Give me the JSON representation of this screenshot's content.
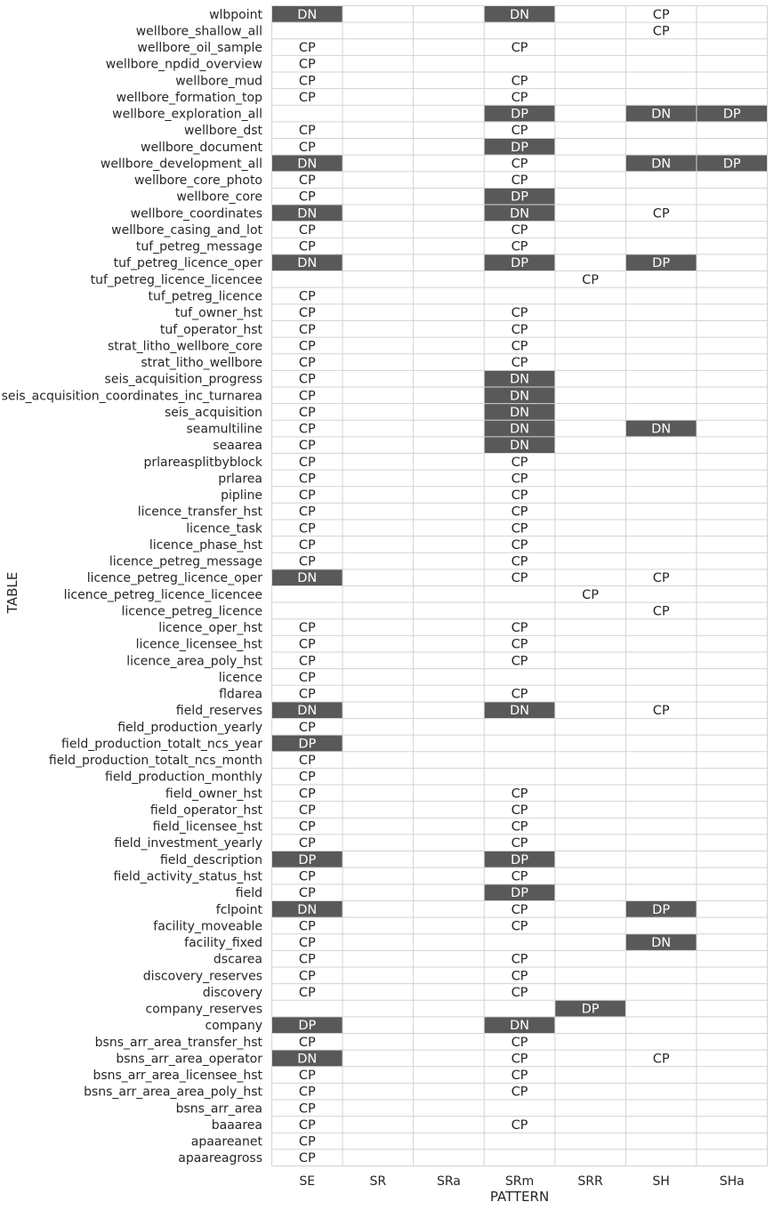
{
  "chart_data": {
    "type": "heatmap",
    "title": "",
    "xlabel": "PATTERN",
    "ylabel": "TABLE",
    "grid": true,
    "legend": "none",
    "columns": [
      "SE",
      "SR",
      "SRa",
      "SRm",
      "SRR",
      "SH",
      "SHa"
    ],
    "colors": {
      "filled": "#595959",
      "empty": "#ffffff",
      "grid": "#d3d3d3",
      "filled_text": "#ffffff",
      "empty_text": "#262626"
    },
    "filled_values": [
      "DN",
      "DP"
    ],
    "rows": [
      {
        "table": "wlbpoint",
        "values": [
          "DN",
          "",
          "",
          "DN",
          "",
          "CP",
          ""
        ]
      },
      {
        "table": "wellbore_shallow_all",
        "values": [
          "",
          "",
          "",
          "",
          "",
          "CP",
          ""
        ]
      },
      {
        "table": "wellbore_oil_sample",
        "values": [
          "CP",
          "",
          "",
          "CP",
          "",
          "",
          ""
        ]
      },
      {
        "table": "wellbore_npdid_overview",
        "values": [
          "CP",
          "",
          "",
          "",
          "",
          "",
          ""
        ]
      },
      {
        "table": "wellbore_mud",
        "values": [
          "CP",
          "",
          "",
          "CP",
          "",
          "",
          ""
        ]
      },
      {
        "table": "wellbore_formation_top",
        "values": [
          "CP",
          "",
          "",
          "CP",
          "",
          "",
          ""
        ]
      },
      {
        "table": "wellbore_exploration_all",
        "values": [
          "",
          "",
          "",
          "DP",
          "",
          "DN",
          "DP"
        ]
      },
      {
        "table": "wellbore_dst",
        "values": [
          "CP",
          "",
          "",
          "CP",
          "",
          "",
          ""
        ]
      },
      {
        "table": "wellbore_document",
        "values": [
          "CP",
          "",
          "",
          "DP",
          "",
          "",
          ""
        ]
      },
      {
        "table": "wellbore_development_all",
        "values": [
          "DN",
          "",
          "",
          "CP",
          "",
          "DN",
          "DP"
        ]
      },
      {
        "table": "wellbore_core_photo",
        "values": [
          "CP",
          "",
          "",
          "CP",
          "",
          "",
          ""
        ]
      },
      {
        "table": "wellbore_core",
        "values": [
          "CP",
          "",
          "",
          "DP",
          "",
          "",
          ""
        ]
      },
      {
        "table": "wellbore_coordinates",
        "values": [
          "DN",
          "",
          "",
          "DN",
          "",
          "CP",
          ""
        ]
      },
      {
        "table": "wellbore_casing_and_lot",
        "values": [
          "CP",
          "",
          "",
          "CP",
          "",
          "",
          ""
        ]
      },
      {
        "table": "tuf_petreg_message",
        "values": [
          "CP",
          "",
          "",
          "CP",
          "",
          "",
          ""
        ]
      },
      {
        "table": "tuf_petreg_licence_oper",
        "values": [
          "DN",
          "",
          "",
          "DP",
          "",
          "DP",
          ""
        ]
      },
      {
        "table": "tuf_petreg_licence_licencee",
        "values": [
          "",
          "",
          "",
          "",
          "CP",
          "",
          ""
        ]
      },
      {
        "table": "tuf_petreg_licence",
        "values": [
          "CP",
          "",
          "",
          "",
          "",
          "",
          ""
        ]
      },
      {
        "table": "tuf_owner_hst",
        "values": [
          "CP",
          "",
          "",
          "CP",
          "",
          "",
          ""
        ]
      },
      {
        "table": "tuf_operator_hst",
        "values": [
          "CP",
          "",
          "",
          "CP",
          "",
          "",
          ""
        ]
      },
      {
        "table": "strat_litho_wellbore_core",
        "values": [
          "CP",
          "",
          "",
          "CP",
          "",
          "",
          ""
        ]
      },
      {
        "table": "strat_litho_wellbore",
        "values": [
          "CP",
          "",
          "",
          "CP",
          "",
          "",
          ""
        ]
      },
      {
        "table": "seis_acquisition_progress",
        "values": [
          "CP",
          "",
          "",
          "DN",
          "",
          "",
          ""
        ]
      },
      {
        "table": "seis_acquisition_coordinates_inc_turnarea",
        "values": [
          "CP",
          "",
          "",
          "DN",
          "",
          "",
          ""
        ]
      },
      {
        "table": "seis_acquisition",
        "values": [
          "CP",
          "",
          "",
          "DN",
          "",
          "",
          ""
        ]
      },
      {
        "table": "seamultiline",
        "values": [
          "CP",
          "",
          "",
          "DN",
          "",
          "DN",
          ""
        ]
      },
      {
        "table": "seaarea",
        "values": [
          "CP",
          "",
          "",
          "DN",
          "",
          "",
          ""
        ]
      },
      {
        "table": "prlareasplitbyblock",
        "values": [
          "CP",
          "",
          "",
          "CP",
          "",
          "",
          ""
        ]
      },
      {
        "table": "prlarea",
        "values": [
          "CP",
          "",
          "",
          "CP",
          "",
          "",
          ""
        ]
      },
      {
        "table": "pipline",
        "values": [
          "CP",
          "",
          "",
          "CP",
          "",
          "",
          ""
        ]
      },
      {
        "table": "licence_transfer_hst",
        "values": [
          "CP",
          "",
          "",
          "CP",
          "",
          "",
          ""
        ]
      },
      {
        "table": "licence_task",
        "values": [
          "CP",
          "",
          "",
          "CP",
          "",
          "",
          ""
        ]
      },
      {
        "table": "licence_phase_hst",
        "values": [
          "CP",
          "",
          "",
          "CP",
          "",
          "",
          ""
        ]
      },
      {
        "table": "licence_petreg_message",
        "values": [
          "CP",
          "",
          "",
          "CP",
          "",
          "",
          ""
        ]
      },
      {
        "table": "licence_petreg_licence_oper",
        "values": [
          "DN",
          "",
          "",
          "CP",
          "",
          "CP",
          ""
        ]
      },
      {
        "table": "licence_petreg_licence_licencee",
        "values": [
          "",
          "",
          "",
          "",
          "CP",
          "",
          ""
        ]
      },
      {
        "table": "licence_petreg_licence",
        "values": [
          "",
          "",
          "",
          "",
          "",
          "CP",
          ""
        ]
      },
      {
        "table": "licence_oper_hst",
        "values": [
          "CP",
          "",
          "",
          "CP",
          "",
          "",
          ""
        ]
      },
      {
        "table": "licence_licensee_hst",
        "values": [
          "CP",
          "",
          "",
          "CP",
          "",
          "",
          ""
        ]
      },
      {
        "table": "licence_area_poly_hst",
        "values": [
          "CP",
          "",
          "",
          "CP",
          "",
          "",
          ""
        ]
      },
      {
        "table": "licence",
        "values": [
          "CP",
          "",
          "",
          "",
          "",
          "",
          ""
        ]
      },
      {
        "table": "fldarea",
        "values": [
          "CP",
          "",
          "",
          "CP",
          "",
          "",
          ""
        ]
      },
      {
        "table": "field_reserves",
        "values": [
          "DN",
          "",
          "",
          "DN",
          "",
          "CP",
          ""
        ]
      },
      {
        "table": "field_production_yearly",
        "values": [
          "CP",
          "",
          "",
          "",
          "",
          "",
          ""
        ]
      },
      {
        "table": "field_production_totalt_ncs_year",
        "values": [
          "DP",
          "",
          "",
          "",
          "",
          "",
          ""
        ]
      },
      {
        "table": "field_production_totalt_ncs_month",
        "values": [
          "CP",
          "",
          "",
          "",
          "",
          "",
          ""
        ]
      },
      {
        "table": "field_production_monthly",
        "values": [
          "CP",
          "",
          "",
          "",
          "",
          "",
          ""
        ]
      },
      {
        "table": "field_owner_hst",
        "values": [
          "CP",
          "",
          "",
          "CP",
          "",
          "",
          ""
        ]
      },
      {
        "table": "field_operator_hst",
        "values": [
          "CP",
          "",
          "",
          "CP",
          "",
          "",
          ""
        ]
      },
      {
        "table": "field_licensee_hst",
        "values": [
          "CP",
          "",
          "",
          "CP",
          "",
          "",
          ""
        ]
      },
      {
        "table": "field_investment_yearly",
        "values": [
          "CP",
          "",
          "",
          "CP",
          "",
          "",
          ""
        ]
      },
      {
        "table": "field_description",
        "values": [
          "DP",
          "",
          "",
          "DP",
          "",
          "",
          ""
        ]
      },
      {
        "table": "field_activity_status_hst",
        "values": [
          "CP",
          "",
          "",
          "CP",
          "",
          "",
          ""
        ]
      },
      {
        "table": "field",
        "values": [
          "CP",
          "",
          "",
          "DP",
          "",
          "",
          ""
        ]
      },
      {
        "table": "fclpoint",
        "values": [
          "DN",
          "",
          "",
          "CP",
          "",
          "DP",
          ""
        ]
      },
      {
        "table": "facility_moveable",
        "values": [
          "CP",
          "",
          "",
          "CP",
          "",
          "",
          ""
        ]
      },
      {
        "table": "facility_fixed",
        "values": [
          "CP",
          "",
          "",
          "",
          "",
          "DN",
          ""
        ]
      },
      {
        "table": "dscarea",
        "values": [
          "CP",
          "",
          "",
          "CP",
          "",
          "",
          ""
        ]
      },
      {
        "table": "discovery_reserves",
        "values": [
          "CP",
          "",
          "",
          "CP",
          "",
          "",
          ""
        ]
      },
      {
        "table": "discovery",
        "values": [
          "CP",
          "",
          "",
          "CP",
          "",
          "",
          ""
        ]
      },
      {
        "table": "company_reserves",
        "values": [
          "",
          "",
          "",
          "",
          "DP",
          "",
          ""
        ]
      },
      {
        "table": "company",
        "values": [
          "DP",
          "",
          "",
          "DN",
          "",
          "",
          ""
        ]
      },
      {
        "table": "bsns_arr_area_transfer_hst",
        "values": [
          "CP",
          "",
          "",
          "CP",
          "",
          "",
          ""
        ]
      },
      {
        "table": "bsns_arr_area_operator",
        "values": [
          "DN",
          "",
          "",
          "CP",
          "",
          "CP",
          ""
        ]
      },
      {
        "table": "bsns_arr_area_licensee_hst",
        "values": [
          "CP",
          "",
          "",
          "CP",
          "",
          "",
          ""
        ]
      },
      {
        "table": "bsns_arr_area_area_poly_hst",
        "values": [
          "CP",
          "",
          "",
          "CP",
          "",
          "",
          ""
        ]
      },
      {
        "table": "bsns_arr_area",
        "values": [
          "CP",
          "",
          "",
          "",
          "",
          "",
          ""
        ]
      },
      {
        "table": "baaarea",
        "values": [
          "CP",
          "",
          "",
          "CP",
          "",
          "",
          ""
        ]
      },
      {
        "table": "apaareanet",
        "values": [
          "CP",
          "",
          "",
          "",
          "",
          "",
          ""
        ]
      },
      {
        "table": "apaareagross",
        "values": [
          "CP",
          "",
          "",
          "",
          "",
          "",
          ""
        ]
      }
    ]
  }
}
